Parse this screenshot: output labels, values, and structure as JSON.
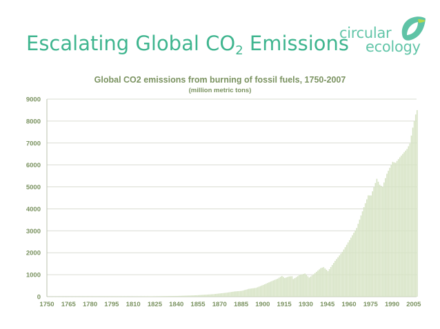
{
  "slide": {
    "title_main": "Escalating Global CO",
    "title_sub": "2",
    "title_end": " Emissions"
  },
  "logo": {
    "line1": "circular",
    "line2": "ecology",
    "icon": "leaf-swirl-icon",
    "color": "#62c5a8"
  },
  "chart_data": {
    "type": "bar",
    "title": "Global CO2 emissions from burning of fossil fuels, 1750-2007",
    "subtitle": "(million metric tons)",
    "xlabel": "",
    "ylabel": "",
    "xlim": [
      1750,
      2007
    ],
    "ylim": [
      0,
      9000
    ],
    "yticks": [
      0,
      1000,
      2000,
      3000,
      4000,
      5000,
      6000,
      7000,
      8000,
      9000
    ],
    "xticks": [
      1750,
      1765,
      1780,
      1795,
      1810,
      1825,
      1840,
      1855,
      1870,
      1885,
      1900,
      1915,
      1930,
      1945,
      1960,
      1975,
      1990,
      2005
    ],
    "grid": true,
    "legend": "none",
    "bar_color": "#d6e3c4",
    "series": [
      {
        "x": [
          1750,
          1760,
          1770,
          1780,
          1790,
          1800,
          1810,
          1820,
          1830,
          1840,
          1850,
          1855,
          1860,
          1865,
          1870,
          1875,
          1880,
          1885,
          1890,
          1895,
          1900,
          1905,
          1910,
          1913,
          1915,
          1918,
          1920,
          1921,
          1925,
          1929,
          1932,
          1935,
          1940,
          1942,
          1945,
          1950,
          1955,
          1960,
          1965,
          1970,
          1973,
          1975,
          1979,
          1981,
          1983,
          1986,
          1990,
          1992,
          1995,
          2000,
          2002,
          2004,
          2005,
          2006,
          2007
        ],
        "values": [
          3,
          3,
          3,
          4,
          7,
          8,
          10,
          14,
          24,
          33,
          54,
          70,
          91,
          112,
          147,
          185,
          236,
          262,
          356,
          400,
          534,
          680,
          819,
          943,
          850,
          920,
          932,
          803,
          975,
          1053,
          870,
          1020,
          1299,
          1345,
          1160,
          1630,
          2040,
          2577,
          3130,
          4076,
          4615,
          4610,
          5370,
          5100,
          5000,
          5600,
          6140,
          6100,
          6350,
          6730,
          6975,
          7700,
          8000,
          8300,
          8500
        ]
      }
    ]
  }
}
